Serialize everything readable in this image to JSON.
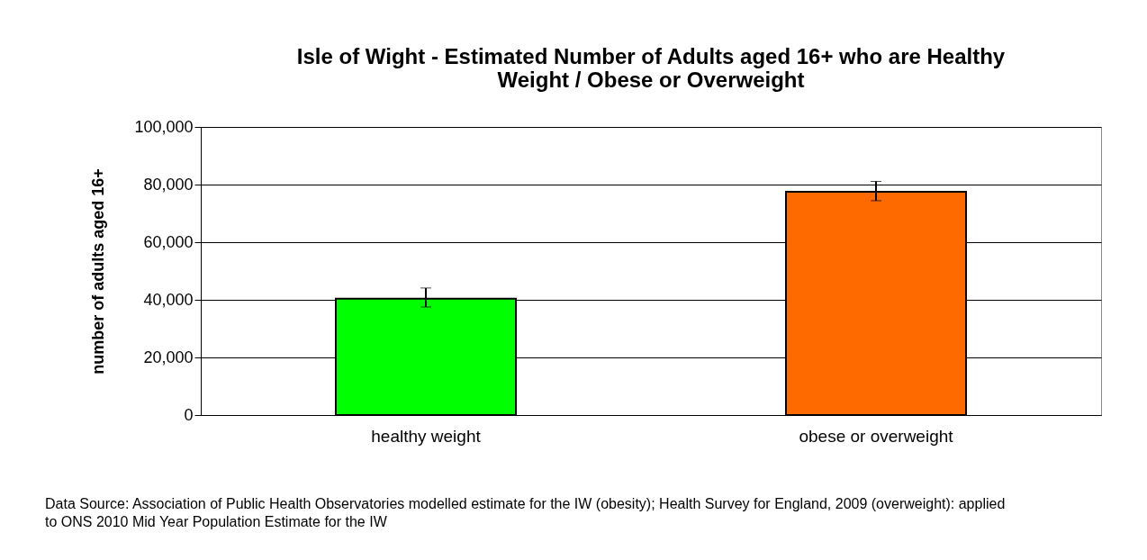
{
  "chart_data": {
    "type": "bar",
    "title": "Isle of Wight - Estimated Number of Adults aged 16+ who are Healthy Weight / Obese or Overweight",
    "ylabel": "number of adults aged 16+",
    "categories": [
      "healthy weight",
      "obese or overweight"
    ],
    "values": [
      40400,
      77500
    ],
    "errors": [
      [
        37500,
        44100
      ],
      [
        74400,
        81100
      ]
    ],
    "colors": [
      "#00ff00",
      "#ff6a00"
    ],
    "ylim": [
      0,
      100000
    ],
    "yticks": [
      0,
      {
        "value": 20000,
        "label": "20,000"
      },
      {
        "value": 40000,
        "label": "40,000"
      },
      {
        "value": 60000,
        "label": "60,000"
      },
      {
        "value": 80000,
        "label": "80,000"
      },
      {
        "value": 100000,
        "label": "100,000"
      }
    ],
    "grid": "y",
    "annotations": [
      "Data Source: Association of Public Health Observatories modelled estimate for the IW (obesity); Health Survey for England, 2009 (overweight): applied to ONS 2010 Mid Year Population Estimate for the IW"
    ]
  }
}
